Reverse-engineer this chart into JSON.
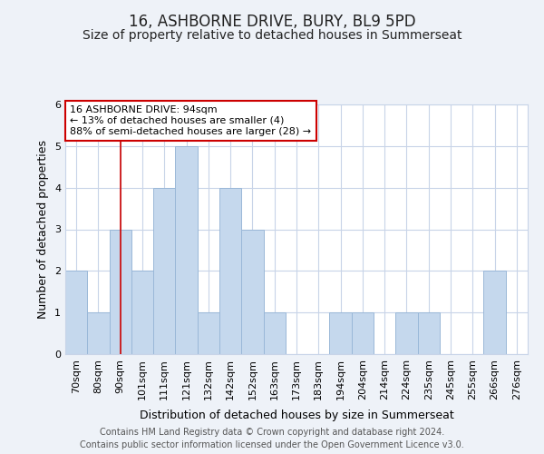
{
  "title": "16, ASHBORNE DRIVE, BURY, BL9 5PD",
  "subtitle": "Size of property relative to detached houses in Summerseat",
  "xlabel": "Distribution of detached houses by size in Summerseat",
  "ylabel": "Number of detached properties",
  "bar_labels": [
    "70sqm",
    "80sqm",
    "90sqm",
    "101sqm",
    "111sqm",
    "121sqm",
    "132sqm",
    "142sqm",
    "152sqm",
    "163sqm",
    "173sqm",
    "183sqm",
    "194sqm",
    "204sqm",
    "214sqm",
    "224sqm",
    "235sqm",
    "245sqm",
    "255sqm",
    "266sqm",
    "276sqm"
  ],
  "bar_values": [
    2,
    1,
    3,
    2,
    4,
    5,
    1,
    4,
    3,
    1,
    0,
    0,
    1,
    1,
    0,
    1,
    1,
    0,
    0,
    2,
    0
  ],
  "bar_color": "#c5d8ed",
  "bar_edge_color": "#9ab8d8",
  "vline_x_index": 2,
  "vline_color": "#cc0000",
  "ylim": [
    0,
    6
  ],
  "yticks": [
    0,
    1,
    2,
    3,
    4,
    5,
    6
  ],
  "annotation_title": "16 ASHBORNE DRIVE: 94sqm",
  "annotation_line1": "← 13% of detached houses are smaller (4)",
  "annotation_line2": "88% of semi-detached houses are larger (28) →",
  "annotation_box_color": "#ffffff",
  "annotation_box_edge_color": "#cc0000",
  "footer_line1": "Contains HM Land Registry data © Crown copyright and database right 2024.",
  "footer_line2": "Contains public sector information licensed under the Open Government Licence v3.0.",
  "background_color": "#eef2f8",
  "plot_background_color": "#ffffff",
  "grid_color": "#c8d4e8",
  "title_fontsize": 12,
  "subtitle_fontsize": 10,
  "xlabel_fontsize": 9,
  "ylabel_fontsize": 9,
  "tick_fontsize": 8,
  "footer_fontsize": 7,
  "annotation_fontsize": 8
}
